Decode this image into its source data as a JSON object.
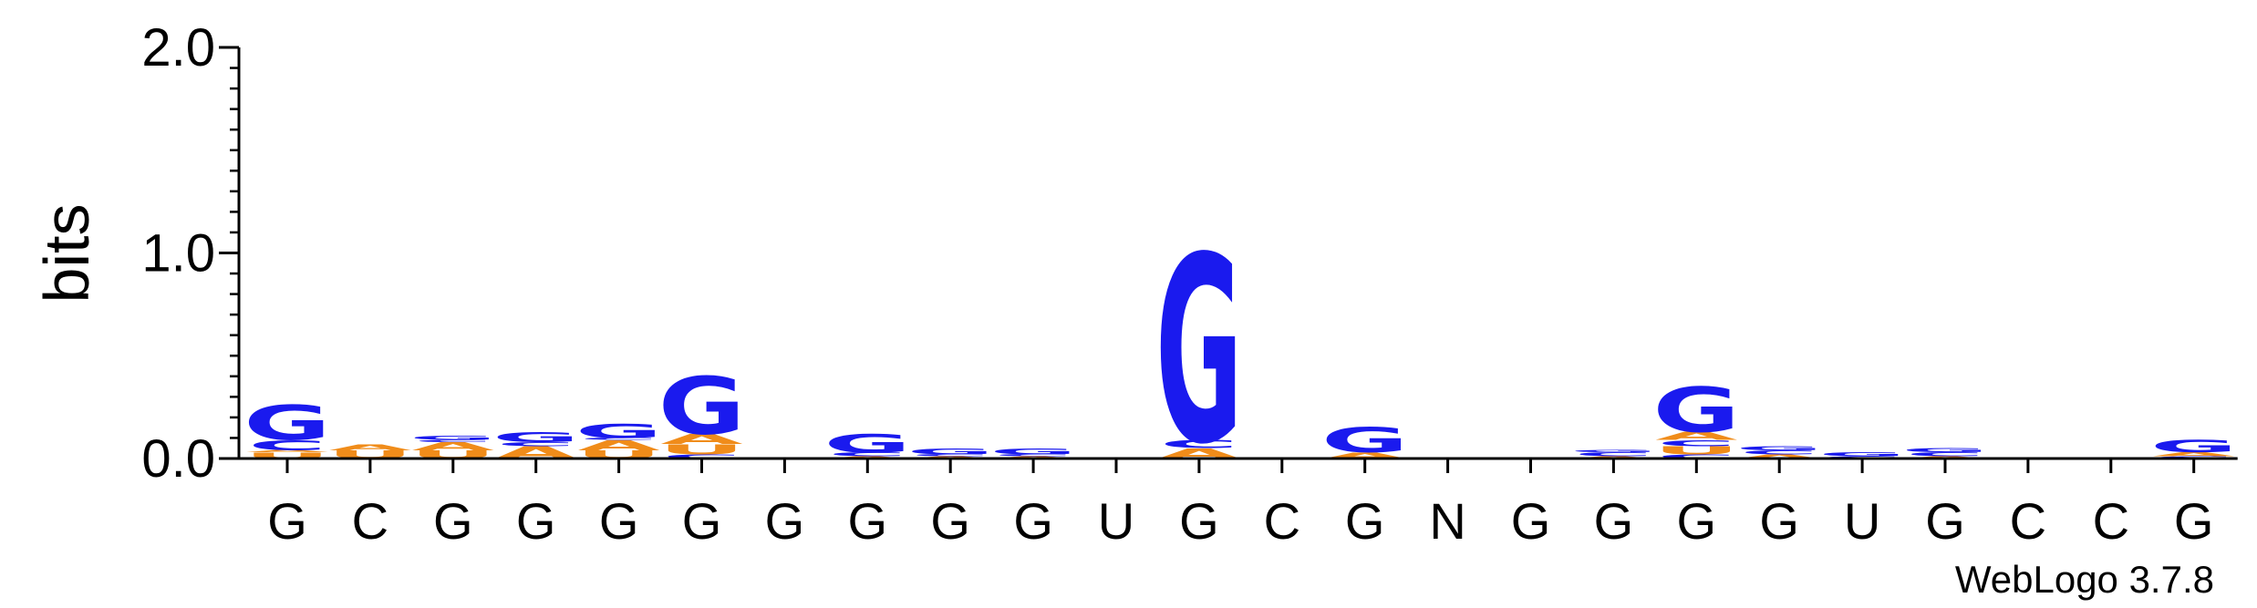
{
  "chart_data": {
    "type": "sequence-logo",
    "ylabel": "bits",
    "ylim": [
      0,
      2.0
    ],
    "y_ticks": [
      {
        "value": 0.0,
        "label": "0.0"
      },
      {
        "value": 1.0,
        "label": "1.0"
      },
      {
        "value": 2.0,
        "label": "2.0"
      }
    ],
    "y_minor_step": 0.1,
    "x_labels": [
      "G",
      "C",
      "G",
      "G",
      "G",
      "G",
      "G",
      "G",
      "G",
      "G",
      "U",
      "G",
      "C",
      "G",
      "N",
      "G",
      "G",
      "G",
      "G",
      "U",
      "G",
      "C",
      "C",
      "G"
    ],
    "colors": {
      "G": "#1a1aee",
      "C": "#1a1aee",
      "A": "#f08c1a",
      "U": "#f08c1a"
    },
    "positions": [
      {
        "stack": [
          {
            "letter": "U",
            "bits": 0.03
          },
          {
            "letter": "A",
            "bits": 0.01
          },
          {
            "letter": "C",
            "bits": 0.05
          },
          {
            "letter": "G",
            "bits": 0.17
          }
        ]
      },
      {
        "stack": [
          {
            "letter": "U",
            "bits": 0.04
          },
          {
            "letter": "A",
            "bits": 0.03
          }
        ]
      },
      {
        "stack": [
          {
            "letter": "U",
            "bits": 0.04
          },
          {
            "letter": "A",
            "bits": 0.04
          },
          {
            "letter": "C",
            "bits": 0.01
          },
          {
            "letter": "G",
            "bits": 0.02
          }
        ]
      },
      {
        "stack": [
          {
            "letter": "A",
            "bits": 0.06
          },
          {
            "letter": "C",
            "bits": 0.02
          },
          {
            "letter": "G",
            "bits": 0.05
          }
        ]
      },
      {
        "stack": [
          {
            "letter": "U",
            "bits": 0.04
          },
          {
            "letter": "A",
            "bits": 0.05
          },
          {
            "letter": "C",
            "bits": 0.01
          },
          {
            "letter": "G",
            "bits": 0.07
          }
        ]
      },
      {
        "stack": [
          {
            "letter": "C",
            "bits": 0.02
          },
          {
            "letter": "U",
            "bits": 0.05
          },
          {
            "letter": "A",
            "bits": 0.05
          },
          {
            "letter": "G",
            "bits": 0.28
          }
        ]
      },
      {
        "stack": [
          {
            "letter": "A",
            "bits": 0.003
          }
        ]
      },
      {
        "stack": [
          {
            "letter": "A",
            "bits": 0.01
          },
          {
            "letter": "C",
            "bits": 0.02
          },
          {
            "letter": "G",
            "bits": 0.09
          }
        ]
      },
      {
        "stack": [
          {
            "letter": "A",
            "bits": 0.01
          },
          {
            "letter": "C",
            "bits": 0.01
          },
          {
            "letter": "G",
            "bits": 0.03
          }
        ]
      },
      {
        "stack": [
          {
            "letter": "A",
            "bits": 0.01
          },
          {
            "letter": "C",
            "bits": 0.01
          },
          {
            "letter": "G",
            "bits": 0.03
          }
        ]
      },
      {
        "stack": []
      },
      {
        "stack": [
          {
            "letter": "A",
            "bits": 0.05
          },
          {
            "letter": "C",
            "bits": 0.04
          },
          {
            "letter": "G",
            "bits": 0.91
          }
        ]
      },
      {
        "stack": []
      },
      {
        "stack": [
          {
            "letter": "A",
            "bits": 0.03
          },
          {
            "letter": "G",
            "bits": 0.12
          }
        ]
      },
      {
        "stack": []
      },
      {
        "stack": [
          {
            "letter": "A",
            "bits": 0.005
          }
        ]
      },
      {
        "stack": [
          {
            "letter": "A",
            "bits": 0.01
          },
          {
            "letter": "C",
            "bits": 0.02
          },
          {
            "letter": "G",
            "bits": 0.01
          }
        ]
      },
      {
        "stack": [
          {
            "letter": "C",
            "bits": 0.02
          },
          {
            "letter": "U",
            "bits": 0.04
          },
          {
            "letter": "C",
            "bits": 0.03
          },
          {
            "letter": "A",
            "bits": 0.04
          },
          {
            "letter": "G",
            "bits": 0.22
          }
        ]
      },
      {
        "stack": [
          {
            "letter": "A",
            "bits": 0.02
          },
          {
            "letter": "C",
            "bits": 0.02
          },
          {
            "letter": "G",
            "bits": 0.02
          }
        ]
      },
      {
        "stack": [
          {
            "letter": "C",
            "bits": 0.01
          },
          {
            "letter": "G",
            "bits": 0.02
          }
        ]
      },
      {
        "stack": [
          {
            "letter": "A",
            "bits": 0.01
          },
          {
            "letter": "C",
            "bits": 0.02
          },
          {
            "letter": "G",
            "bits": 0.02
          }
        ]
      },
      {
        "stack": []
      },
      {
        "stack": []
      },
      {
        "stack": [
          {
            "letter": "C",
            "bits": 0.01
          },
          {
            "letter": "A",
            "bits": 0.02
          },
          {
            "letter": "G",
            "bits": 0.06
          }
        ]
      }
    ]
  },
  "footer": {
    "credit": "WebLogo 3.7.8"
  }
}
